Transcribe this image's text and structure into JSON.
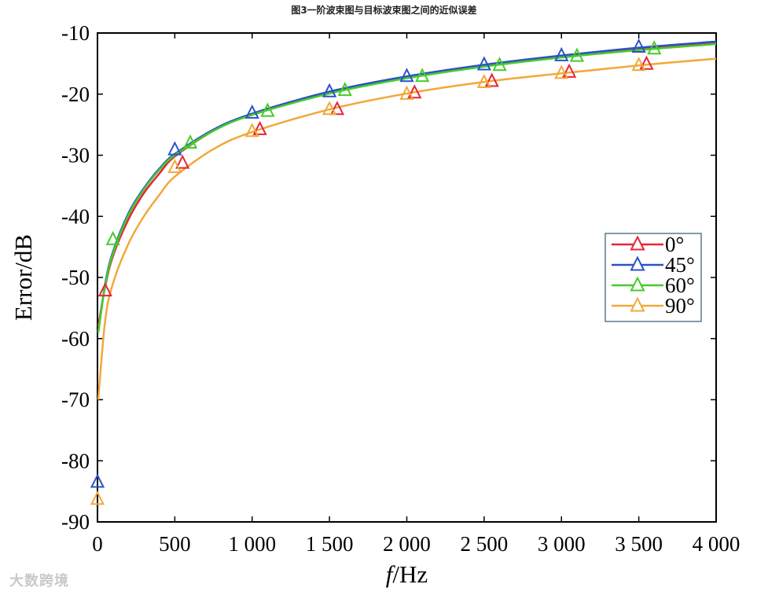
{
  "chart_data": {
    "type": "line",
    "title": "图3一阶波束图与目标波束图之间的近似误差",
    "xlabel_italic": "f",
    "xlabel_rest": "/Hz",
    "ylabel": "Error/dB",
    "xlim": [
      0,
      4000
    ],
    "ylim": [
      -90,
      -10
    ],
    "x_ticks": [
      0,
      500,
      1000,
      1500,
      2000,
      2500,
      3000,
      3500,
      4000
    ],
    "x_tick_labels": [
      "0",
      "500",
      "1 000",
      "1 500",
      "2 000",
      "2 500",
      "3 000",
      "3 500",
      "4 000"
    ],
    "y_ticks": [
      -10,
      -20,
      -30,
      -40,
      -50,
      -60,
      -70,
      -80,
      -90
    ],
    "y_tick_labels": [
      "-10",
      "-20",
      "-30",
      "-40",
      "-50",
      "-60",
      "-70",
      "-80",
      "-90"
    ],
    "grid": false,
    "legend_position": "right-middle",
    "series": [
      {
        "name": "0°",
        "color": "#e8233a",
        "line": [
          [
            5,
            -58
          ],
          [
            50,
            -51.5
          ],
          [
            100,
            -46.5
          ],
          [
            200,
            -40.5
          ],
          [
            300,
            -36.2
          ],
          [
            400,
            -33
          ],
          [
            500,
            -30.2
          ],
          [
            750,
            -26
          ],
          [
            1000,
            -23.2
          ],
          [
            1500,
            -19.6
          ],
          [
            2000,
            -17.1
          ],
          [
            2500,
            -15.2
          ],
          [
            3000,
            -13.7
          ],
          [
            3500,
            -12.5
          ],
          [
            4000,
            -11.5
          ]
        ],
        "markers": [
          [
            50,
            -52.2
          ],
          [
            550,
            -31.3
          ],
          [
            1050,
            -25.8
          ],
          [
            1550,
            -22.5
          ],
          [
            2050,
            -19.8
          ],
          [
            2550,
            -17.9
          ],
          [
            3050,
            -16.4
          ],
          [
            3550,
            -15.1
          ]
        ]
      },
      {
        "name": "45°",
        "color": "#2a53c8",
        "line": [
          [
            5,
            -59
          ],
          [
            50,
            -51
          ],
          [
            100,
            -45.8
          ],
          [
            200,
            -39.5
          ],
          [
            300,
            -35.4
          ],
          [
            400,
            -32.2
          ],
          [
            500,
            -29.8
          ],
          [
            750,
            -25.8
          ],
          [
            1000,
            -23.2
          ],
          [
            1500,
            -19.6
          ],
          [
            2000,
            -17.1
          ],
          [
            2500,
            -15.2
          ],
          [
            3000,
            -13.7
          ],
          [
            3500,
            -12.4
          ],
          [
            4000,
            -11.4
          ]
        ],
        "markers": [
          [
            0,
            -83.5
          ],
          [
            500,
            -29.1
          ],
          [
            1000,
            -23.1
          ],
          [
            1500,
            -19.6
          ],
          [
            2000,
            -17.1
          ],
          [
            2500,
            -15.2
          ],
          [
            3000,
            -13.7
          ],
          [
            3500,
            -12.3
          ]
        ]
      },
      {
        "name": "60°",
        "color": "#45cc2a",
        "line": [
          [
            5,
            -59
          ],
          [
            50,
            -51.3
          ],
          [
            100,
            -46.1
          ],
          [
            200,
            -39.8
          ],
          [
            300,
            -35.6
          ],
          [
            400,
            -32.4
          ],
          [
            500,
            -30
          ],
          [
            750,
            -26
          ],
          [
            1000,
            -23.4
          ],
          [
            1500,
            -19.9
          ],
          [
            2000,
            -17.4
          ],
          [
            2500,
            -15.5
          ],
          [
            3000,
            -14
          ],
          [
            3500,
            -12.8
          ],
          [
            4000,
            -11.8
          ]
        ],
        "markers": [
          [
            100,
            -43.8
          ],
          [
            600,
            -28
          ],
          [
            1100,
            -22.8
          ],
          [
            1600,
            -19.4
          ],
          [
            2100,
            -17.1
          ],
          [
            2600,
            -15.3
          ],
          [
            3100,
            -13.8
          ],
          [
            3600,
            -12.6
          ]
        ]
      },
      {
        "name": "90°",
        "color": "#f2a83a",
        "line": [
          [
            5,
            -70
          ],
          [
            50,
            -57
          ],
          [
            100,
            -51
          ],
          [
            200,
            -44.5
          ],
          [
            300,
            -40
          ],
          [
            400,
            -36.5
          ],
          [
            500,
            -33.5
          ],
          [
            750,
            -29
          ],
          [
            1000,
            -26.2
          ],
          [
            1500,
            -22.5
          ],
          [
            2000,
            -19.9
          ],
          [
            2500,
            -18
          ],
          [
            3000,
            -16.6
          ],
          [
            3500,
            -15.3
          ],
          [
            4000,
            -14.2
          ]
        ],
        "markers": [
          [
            0,
            -86.3
          ],
          [
            500,
            -32
          ],
          [
            1000,
            -26.1
          ],
          [
            1500,
            -22.5
          ],
          [
            2000,
            -20
          ],
          [
            2500,
            -18.1
          ],
          [
            3000,
            -16.6
          ],
          [
            3500,
            -15.3
          ]
        ]
      }
    ]
  },
  "watermark": "大数跨境"
}
